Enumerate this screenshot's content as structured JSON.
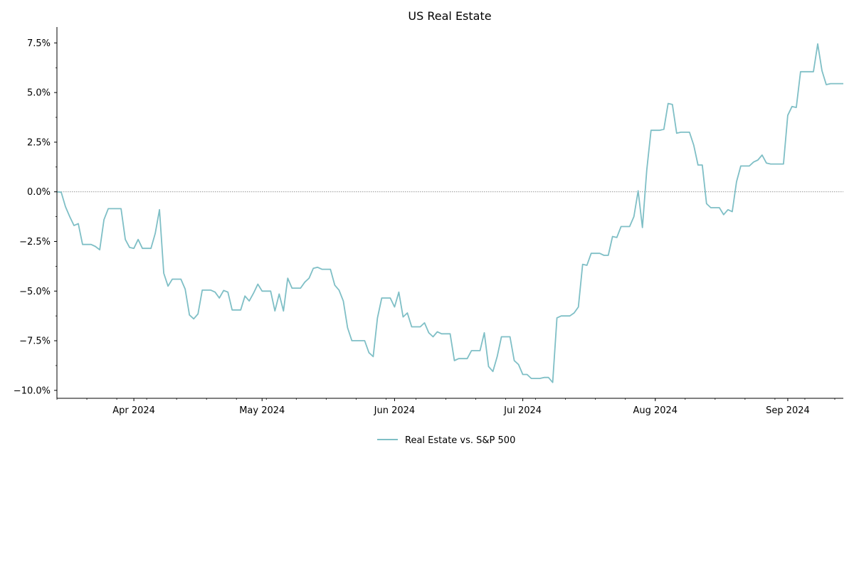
{
  "chart_data": {
    "type": "line",
    "title": "US Real Estate",
    "xlabel": "",
    "ylabel": "",
    "x_range": [
      "2024-03-14",
      "2024-09-14"
    ],
    "ylim": [
      -10.4,
      8.3
    ],
    "y_tick_format": "percent",
    "y_ticks": [
      -10.0,
      -7.5,
      -5.0,
      -2.5,
      0.0,
      2.5,
      5.0,
      7.5
    ],
    "y_tick_labels": [
      "−10.0%",
      "−7.5%",
      "−5.0%",
      "−2.5%",
      "0.0%",
      "2.5%",
      "5.0%",
      "7.5%"
    ],
    "x_ticks": [
      {
        "date": "2024-04-01",
        "label": "Apr 2024"
      },
      {
        "date": "2024-05-01",
        "label": "May 2024"
      },
      {
        "date": "2024-06-01",
        "label": "Jun 2024"
      },
      {
        "date": "2024-07-01",
        "label": "Jul 2024"
      },
      {
        "date": "2024-08-01",
        "label": "Aug 2024"
      },
      {
        "date": "2024-09-01",
        "label": "Sep 2024"
      }
    ],
    "reference_line": {
      "y": 0,
      "style": "dotted",
      "color": "#888888"
    },
    "grid": false,
    "legend": {
      "placement": "below-center",
      "entries": [
        "Real Estate vs. S&P 500"
      ]
    },
    "series": [
      {
        "name": "Real Estate vs. S&P 500",
        "color": "#7fbfc6",
        "points": [
          [
            "2024-03-14",
            0.0
          ],
          [
            "2024-03-15",
            -0.02
          ],
          [
            "2024-03-16",
            -0.75
          ],
          [
            "2024-03-17",
            -1.25
          ],
          [
            "2024-03-18",
            -1.7
          ],
          [
            "2024-03-19",
            -1.6
          ],
          [
            "2024-03-20",
            -2.65
          ],
          [
            "2024-03-21",
            -2.65
          ],
          [
            "2024-03-22",
            -2.65
          ],
          [
            "2024-03-23",
            -2.75
          ],
          [
            "2024-03-24",
            -2.92
          ],
          [
            "2024-03-25",
            -1.4
          ],
          [
            "2024-03-26",
            -0.85
          ],
          [
            "2024-03-27",
            -0.85
          ],
          [
            "2024-03-28",
            -0.85
          ],
          [
            "2024-03-29",
            -0.85
          ],
          [
            "2024-03-30",
            -2.4
          ],
          [
            "2024-03-31",
            -2.8
          ],
          [
            "2024-04-01",
            -2.85
          ],
          [
            "2024-04-02",
            -2.4
          ],
          [
            "2024-04-03",
            -2.85
          ],
          [
            "2024-04-04",
            -2.85
          ],
          [
            "2024-04-05",
            -2.85
          ],
          [
            "2024-04-06",
            -2.1
          ],
          [
            "2024-04-07",
            -0.9
          ],
          [
            "2024-04-08",
            -4.1
          ],
          [
            "2024-04-09",
            -4.75
          ],
          [
            "2024-04-10",
            -4.4
          ],
          [
            "2024-04-11",
            -4.4
          ],
          [
            "2024-04-12",
            -4.4
          ],
          [
            "2024-04-13",
            -4.9
          ],
          [
            "2024-04-14",
            -6.2
          ],
          [
            "2024-04-15",
            -6.4
          ],
          [
            "2024-04-16",
            -6.15
          ],
          [
            "2024-04-17",
            -4.95
          ],
          [
            "2024-04-18",
            -4.95
          ],
          [
            "2024-04-19",
            -4.95
          ],
          [
            "2024-04-20",
            -5.05
          ],
          [
            "2024-04-21",
            -5.35
          ],
          [
            "2024-04-22",
            -4.97
          ],
          [
            "2024-04-23",
            -5.05
          ],
          [
            "2024-04-24",
            -5.95
          ],
          [
            "2024-04-25",
            -5.95
          ],
          [
            "2024-04-26",
            -5.95
          ],
          [
            "2024-04-27",
            -5.25
          ],
          [
            "2024-04-28",
            -5.5
          ],
          [
            "2024-04-29",
            -5.1
          ],
          [
            "2024-04-30",
            -4.65
          ],
          [
            "2024-05-01",
            -5.0
          ],
          [
            "2024-05-02",
            -5.0
          ],
          [
            "2024-05-03",
            -5.0
          ],
          [
            "2024-05-04",
            -6.0
          ],
          [
            "2024-05-05",
            -5.15
          ],
          [
            "2024-05-06",
            -6.0
          ],
          [
            "2024-05-07",
            -4.35
          ],
          [
            "2024-05-08",
            -4.85
          ],
          [
            "2024-05-09",
            -4.85
          ],
          [
            "2024-05-10",
            -4.85
          ],
          [
            "2024-05-11",
            -4.55
          ],
          [
            "2024-05-12",
            -4.35
          ],
          [
            "2024-05-13",
            -3.85
          ],
          [
            "2024-05-14",
            -3.8
          ],
          [
            "2024-05-15",
            -3.9
          ],
          [
            "2024-05-16",
            -3.9
          ],
          [
            "2024-05-17",
            -3.9
          ],
          [
            "2024-05-18",
            -4.7
          ],
          [
            "2024-05-19",
            -4.95
          ],
          [
            "2024-05-20",
            -5.5
          ],
          [
            "2024-05-21",
            -6.85
          ],
          [
            "2024-05-22",
            -7.5
          ],
          [
            "2024-05-23",
            -7.5
          ],
          [
            "2024-05-24",
            -7.5
          ],
          [
            "2024-05-25",
            -7.5
          ],
          [
            "2024-05-26",
            -8.1
          ],
          [
            "2024-05-27",
            -8.3
          ],
          [
            "2024-05-28",
            -6.35
          ],
          [
            "2024-05-29",
            -5.35
          ],
          [
            "2024-05-30",
            -5.35
          ],
          [
            "2024-05-31",
            -5.35
          ],
          [
            "2024-06-01",
            -5.8
          ],
          [
            "2024-06-02",
            -5.05
          ],
          [
            "2024-06-03",
            -6.3
          ],
          [
            "2024-06-04",
            -6.1
          ],
          [
            "2024-06-05",
            -6.8
          ],
          [
            "2024-06-06",
            -6.8
          ],
          [
            "2024-06-07",
            -6.8
          ],
          [
            "2024-06-08",
            -6.6
          ],
          [
            "2024-06-09",
            -7.1
          ],
          [
            "2024-06-10",
            -7.3
          ],
          [
            "2024-06-11",
            -7.05
          ],
          [
            "2024-06-12",
            -7.15
          ],
          [
            "2024-06-13",
            -7.15
          ],
          [
            "2024-06-14",
            -7.15
          ],
          [
            "2024-06-15",
            -8.5
          ],
          [
            "2024-06-16",
            -8.4
          ],
          [
            "2024-06-17",
            -8.4
          ],
          [
            "2024-06-18",
            -8.4
          ],
          [
            "2024-06-19",
            -8.0
          ],
          [
            "2024-06-20",
            -8.0
          ],
          [
            "2024-06-21",
            -8.0
          ],
          [
            "2024-06-22",
            -7.1
          ],
          [
            "2024-06-23",
            -8.8
          ],
          [
            "2024-06-24",
            -9.05
          ],
          [
            "2024-06-25",
            -8.3
          ],
          [
            "2024-06-26",
            -7.3
          ],
          [
            "2024-06-27",
            -7.3
          ],
          [
            "2024-06-28",
            -7.3
          ],
          [
            "2024-06-29",
            -8.5
          ],
          [
            "2024-06-30",
            -8.7
          ],
          [
            "2024-07-01",
            -9.2
          ],
          [
            "2024-07-02",
            -9.2
          ],
          [
            "2024-07-03",
            -9.4
          ],
          [
            "2024-07-04",
            -9.4
          ],
          [
            "2024-07-05",
            -9.4
          ],
          [
            "2024-07-06",
            -9.35
          ],
          [
            "2024-07-07",
            -9.35
          ],
          [
            "2024-07-08",
            -9.6
          ],
          [
            "2024-07-09",
            -6.35
          ],
          [
            "2024-07-10",
            -6.25
          ],
          [
            "2024-07-11",
            -6.25
          ],
          [
            "2024-07-12",
            -6.25
          ],
          [
            "2024-07-13",
            -6.1
          ],
          [
            "2024-07-14",
            -5.8
          ],
          [
            "2024-07-15",
            -3.65
          ],
          [
            "2024-07-16",
            -3.7
          ],
          [
            "2024-07-17",
            -3.1
          ],
          [
            "2024-07-18",
            -3.1
          ],
          [
            "2024-07-19",
            -3.1
          ],
          [
            "2024-07-20",
            -3.2
          ],
          [
            "2024-07-21",
            -3.2
          ],
          [
            "2024-07-22",
            -2.25
          ],
          [
            "2024-07-23",
            -2.3
          ],
          [
            "2024-07-24",
            -1.75
          ],
          [
            "2024-07-25",
            -1.75
          ],
          [
            "2024-07-26",
            -1.75
          ],
          [
            "2024-07-27",
            -1.25
          ],
          [
            "2024-07-28",
            0.05
          ],
          [
            "2024-07-29",
            -1.8
          ],
          [
            "2024-07-30",
            1.1
          ],
          [
            "2024-07-31",
            3.1
          ],
          [
            "2024-08-01",
            3.1
          ],
          [
            "2024-08-02",
            3.1
          ],
          [
            "2024-08-03",
            3.15
          ],
          [
            "2024-08-04",
            4.45
          ],
          [
            "2024-08-05",
            4.4
          ],
          [
            "2024-08-06",
            2.95
          ],
          [
            "2024-08-07",
            3.0
          ],
          [
            "2024-08-08",
            3.0
          ],
          [
            "2024-08-09",
            3.0
          ],
          [
            "2024-08-10",
            2.35
          ],
          [
            "2024-08-11",
            1.35
          ],
          [
            "2024-08-12",
            1.35
          ],
          [
            "2024-08-13",
            -0.6
          ],
          [
            "2024-08-14",
            -0.8
          ],
          [
            "2024-08-15",
            -0.8
          ],
          [
            "2024-08-16",
            -0.8
          ],
          [
            "2024-08-17",
            -1.15
          ],
          [
            "2024-08-18",
            -0.9
          ],
          [
            "2024-08-19",
            -1.0
          ],
          [
            "2024-08-20",
            0.5
          ],
          [
            "2024-08-21",
            1.3
          ],
          [
            "2024-08-22",
            1.3
          ],
          [
            "2024-08-23",
            1.3
          ],
          [
            "2024-08-24",
            1.5
          ],
          [
            "2024-08-25",
            1.6
          ],
          [
            "2024-08-26",
            1.85
          ],
          [
            "2024-08-27",
            1.45
          ],
          [
            "2024-08-28",
            1.4
          ],
          [
            "2024-08-29",
            1.4
          ],
          [
            "2024-08-30",
            1.4
          ],
          [
            "2024-08-31",
            1.4
          ],
          [
            "2024-09-01",
            3.85
          ],
          [
            "2024-09-02",
            4.3
          ],
          [
            "2024-09-03",
            4.25
          ],
          [
            "2024-09-04",
            6.05
          ],
          [
            "2024-09-05",
            6.05
          ],
          [
            "2024-09-06",
            6.05
          ],
          [
            "2024-09-07",
            6.05
          ],
          [
            "2024-09-08",
            7.45
          ],
          [
            "2024-09-09",
            6.1
          ],
          [
            "2024-09-10",
            5.4
          ],
          [
            "2024-09-11",
            5.45
          ],
          [
            "2024-09-12",
            5.45
          ],
          [
            "2024-09-13",
            5.45
          ],
          [
            "2024-09-14",
            5.45
          ]
        ]
      }
    ]
  }
}
